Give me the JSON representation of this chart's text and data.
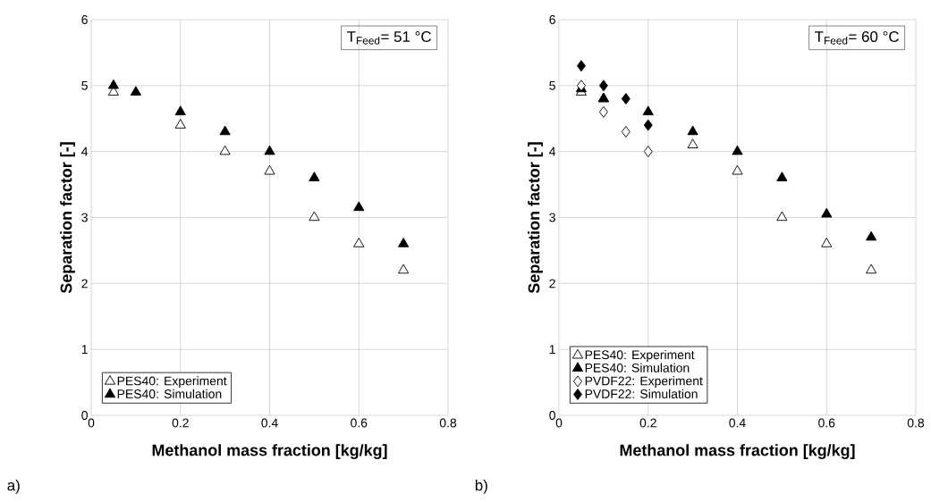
{
  "chart_data": [
    {
      "type": "scatter",
      "xlabel": "Methanol mass fraction [kg/kg]",
      "ylabel": "Separation factor [-]",
      "xlim": [
        0,
        0.8
      ],
      "ylim": [
        0,
        6
      ],
      "xticks": [
        0,
        0.2,
        0.4,
        0.6,
        0.8
      ],
      "yticks": [
        0,
        1,
        2,
        3,
        4,
        5,
        6
      ],
      "grid": true,
      "legend": "bottom left",
      "annotations": [
        "T$_{Feed}$= 51 °C",
        "a)"
      ],
      "series": [
        {
          "name": "PES40: Experiment",
          "marker": "triangle",
          "color": "#ffffff",
          "x": [
            0.05,
            0.2,
            0.3,
            0.4,
            0.5,
            0.6,
            0.7
          ],
          "values": [
            4.9,
            4.4,
            4.0,
            3.7,
            3.0,
            2.6,
            2.2
          ]
        },
        {
          "name": "PES40: Simulation",
          "marker": "triangle",
          "color": "#000000",
          "x": [
            0.05,
            0.1,
            0.2,
            0.3,
            0.4,
            0.5,
            0.6,
            0.7
          ],
          "values": [
            5.0,
            4.9,
            4.6,
            4.3,
            4.0,
            3.6,
            3.15,
            2.6
          ]
        }
      ]
    },
    {
      "type": "scatter",
      "xlabel": "Methanol mass fraction [kg/kg]",
      "ylabel": "Separation factor [-]",
      "xlim": [
        0,
        0.8
      ],
      "ylim": [
        0,
        6
      ],
      "xticks": [
        0,
        0.2,
        0.4,
        0.6,
        0.8
      ],
      "yticks": [
        0,
        1,
        2,
        3,
        4,
        5,
        6
      ],
      "grid": true,
      "legend": "bottom left",
      "annotations": [
        "T$_{Feed}$= 60 °C",
        "b)"
      ],
      "series": [
        {
          "name": "PES40: Experiment",
          "marker": "triangle",
          "color": "#ffffff",
          "x": [
            0.05,
            0.1,
            0.3,
            0.4,
            0.5,
            0.6,
            0.7
          ],
          "values": [
            4.9,
            4.8,
            4.1,
            3.7,
            3.0,
            2.6,
            2.2
          ]
        },
        {
          "name": "PES40: Simulation",
          "marker": "triangle",
          "color": "#000000",
          "x": [
            0.05,
            0.1,
            0.2,
            0.3,
            0.4,
            0.5,
            0.6,
            0.7
          ],
          "values": [
            4.95,
            4.8,
            4.6,
            4.3,
            4.0,
            3.6,
            3.05,
            2.7
          ]
        },
        {
          "name": "PVDF22: Experiment",
          "marker": "diamond",
          "color": "#ffffff",
          "x": [
            0.05,
            0.1,
            0.15,
            0.2
          ],
          "values": [
            5.0,
            4.6,
            4.3,
            4.0
          ]
        },
        {
          "name": "PVDF22: Simulation",
          "marker": "diamond",
          "color": "#000000",
          "x": [
            0.05,
            0.1,
            0.15,
            0.2
          ],
          "values": [
            5.3,
            5.0,
            4.8,
            4.4
          ]
        }
      ]
    }
  ]
}
